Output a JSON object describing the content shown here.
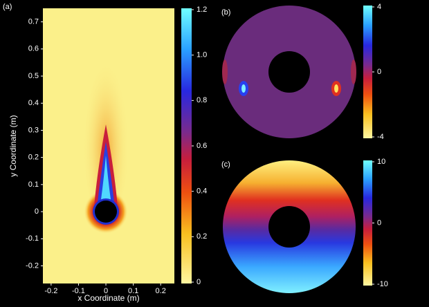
{
  "chart_data": [
    {
      "type": "heatmap",
      "label": "(a)",
      "xlabel": "x Coordinate (m)",
      "ylabel": "y Coordinate (m)",
      "xlim": [
        -0.23,
        0.25
      ],
      "xticks": [
        -0.2,
        -0.1,
        0,
        0.1,
        0.2
      ],
      "ylim": [
        -0.265,
        0.75
      ],
      "yticks": [
        -0.2,
        -0.1,
        0,
        0.1,
        0.2,
        0.3,
        0.4,
        0.5,
        0.6,
        0.7
      ],
      "clim": [
        0,
        1.2
      ],
      "cticks": [
        0,
        0.2,
        0.4,
        0.6,
        0.8,
        {
          "value": 1,
          "label": "1.0"
        },
        1.2
      ]
    },
    {
      "type": "polar-heatmap",
      "label": "(b)",
      "clim": [
        -4,
        4
      ],
      "cticks": [
        -4,
        0,
        4
      ]
    },
    {
      "type": "polar-heatmap",
      "label": "(c)",
      "clim": [
        -10,
        10
      ],
      "cticks": [
        -10,
        0,
        10
      ]
    }
  ]
}
